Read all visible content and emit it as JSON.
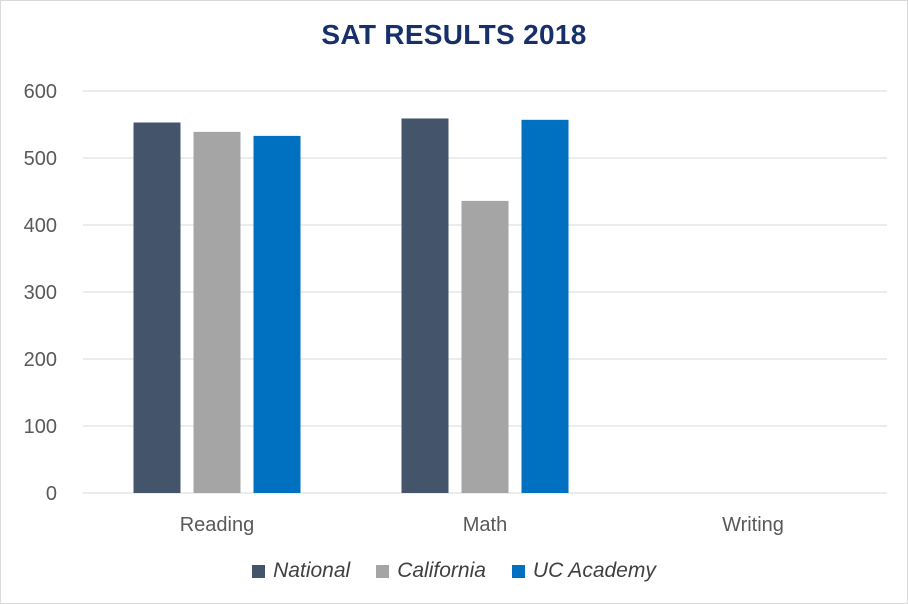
{
  "chart_data": {
    "type": "bar",
    "title": "SAT RESULTS 2018",
    "categories": [
      "Reading",
      "Math",
      "Writing"
    ],
    "series": [
      {
        "name": "National",
        "color": "#44546a",
        "values": [
          553,
          559,
          null
        ]
      },
      {
        "name": "California",
        "color": "#a5a5a5",
        "values": [
          539,
          436,
          null
        ]
      },
      {
        "name": "UC Academy",
        "color": "#0070c0",
        "values": [
          533,
          557,
          null
        ]
      }
    ],
    "yticks": [
      "0",
      "100",
      "200",
      "300",
      "400",
      "500",
      "600"
    ],
    "ylim": [
      0,
      600
    ],
    "grid": true,
    "legend_position": "bottom"
  }
}
